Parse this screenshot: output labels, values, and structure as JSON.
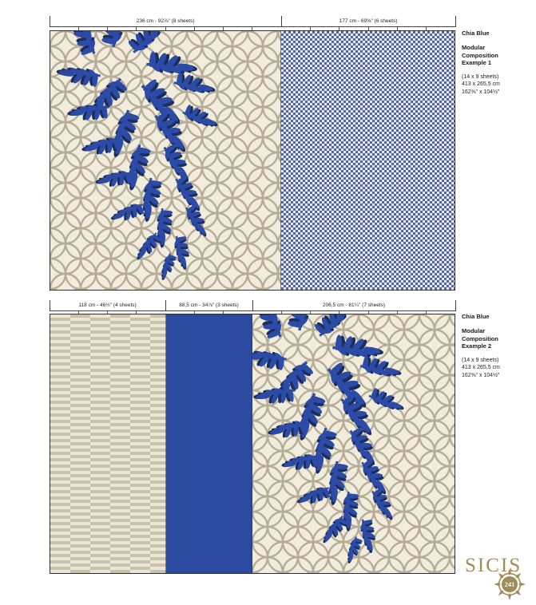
{
  "brand": {
    "logo_text": "SICIS",
    "page_number": "241"
  },
  "examples": [
    {
      "product": "Chia Blue",
      "composition": "Modular\nComposition\nExample 1",
      "specs": "(14 x 9 sheets)\n413 x 265,5 cm\n162⅝\" x 104½\"",
      "sections": [
        {
          "label": "236 cm - 92⅞\" (8 sheets)",
          "sheets": 8,
          "width_pct": 57.14,
          "pattern": "mosaic-branch"
        },
        {
          "label": "177 cm - 69⅝\" (6 sheets)",
          "sheets": 6,
          "width_pct": 42.86,
          "pattern": "blue-check"
        }
      ]
    },
    {
      "product": "Chia Blue",
      "composition": "Modular\nComposition\nExample 2",
      "specs": "(14 x 9 sheets)\n413 x 265,5 cm\n162⅝\" x 104½\"",
      "sections": [
        {
          "label": "118 cm - 46½\" (4 sheets)",
          "sheets": 4,
          "width_pct": 28.57,
          "pattern": "beige-stripes"
        },
        {
          "label": "88,5 cm - 34⅞\" (3 sheets)",
          "sheets": 3,
          "width_pct": 21.43,
          "pattern": "solid-blue"
        },
        {
          "label": "206,5 cm - 81¼\" (7 sheets)",
          "sheets": 7,
          "width_pct": 50.0,
          "pattern": "mosaic-branch"
        }
      ]
    }
  ],
  "colors": {
    "accent_blue": "#2b4ba6",
    "shadow_navy": "#1b2d5f",
    "solid_blue": "#2b4aa0",
    "mosaic_cream": "#f1ecdc",
    "mosaic_line": "#b6ad98",
    "check_blue": "#54679d",
    "check_white": "#e9eaef",
    "stripe_light": "#ece6d6",
    "stripe_dark": "#c9c2ac",
    "brand_gold": "#a28c55"
  }
}
